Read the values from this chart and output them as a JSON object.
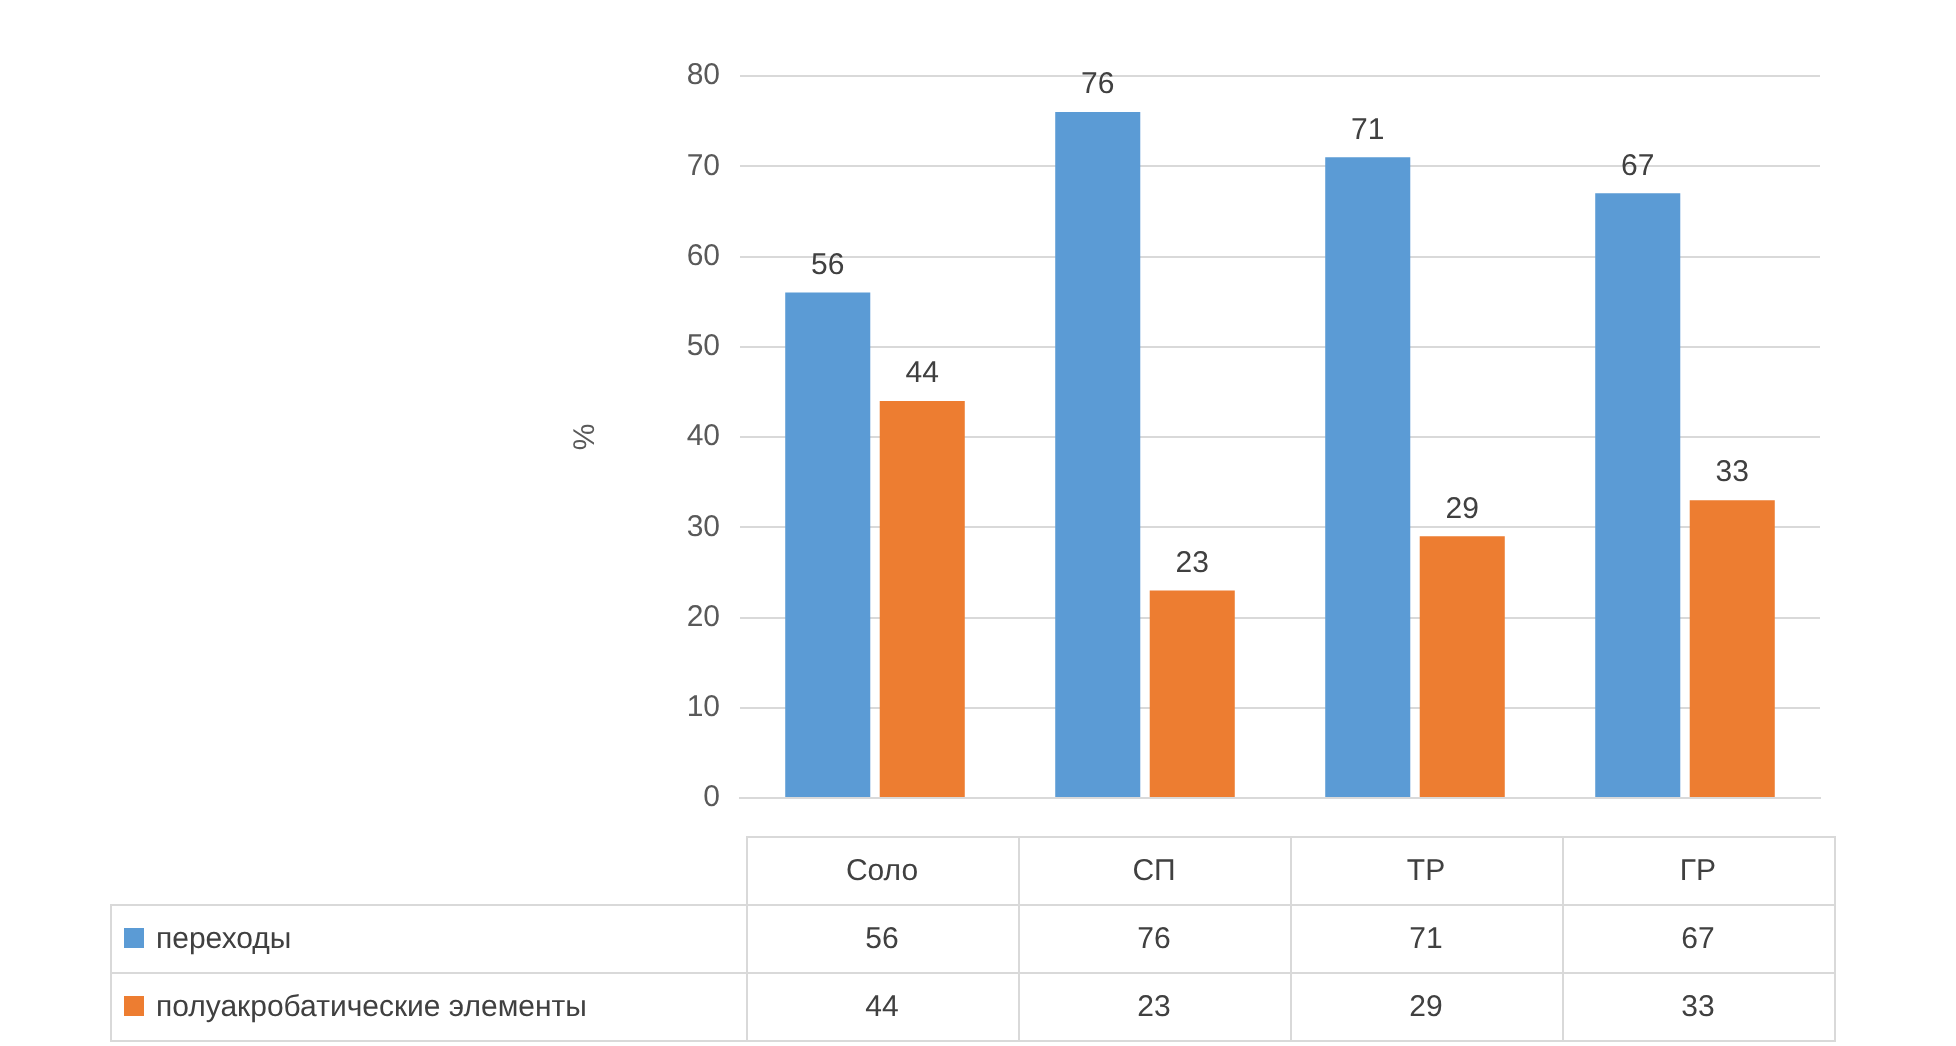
{
  "chart_data": {
    "type": "bar",
    "ylabel": "%",
    "categories": [
      "Соло",
      "СП",
      "ТР",
      "ГР"
    ],
    "series": [
      {
        "name": "переходы",
        "color": "#5b9bd5",
        "values": [
          56,
          76,
          71,
          67
        ]
      },
      {
        "name": "полуакробатические элементы",
        "color": "#ed7d31",
        "values": [
          44,
          23,
          29,
          33
        ]
      }
    ],
    "ylim": [
      0,
      80
    ],
    "yticks": [
      0,
      10,
      20,
      30,
      40,
      50,
      60,
      70,
      80
    ],
    "grid": "y",
    "data_labels": true,
    "annotations": [
      "56",
      "76",
      "71",
      "67",
      "44",
      "23",
      "29",
      "33"
    ],
    "legend": "bottom"
  }
}
